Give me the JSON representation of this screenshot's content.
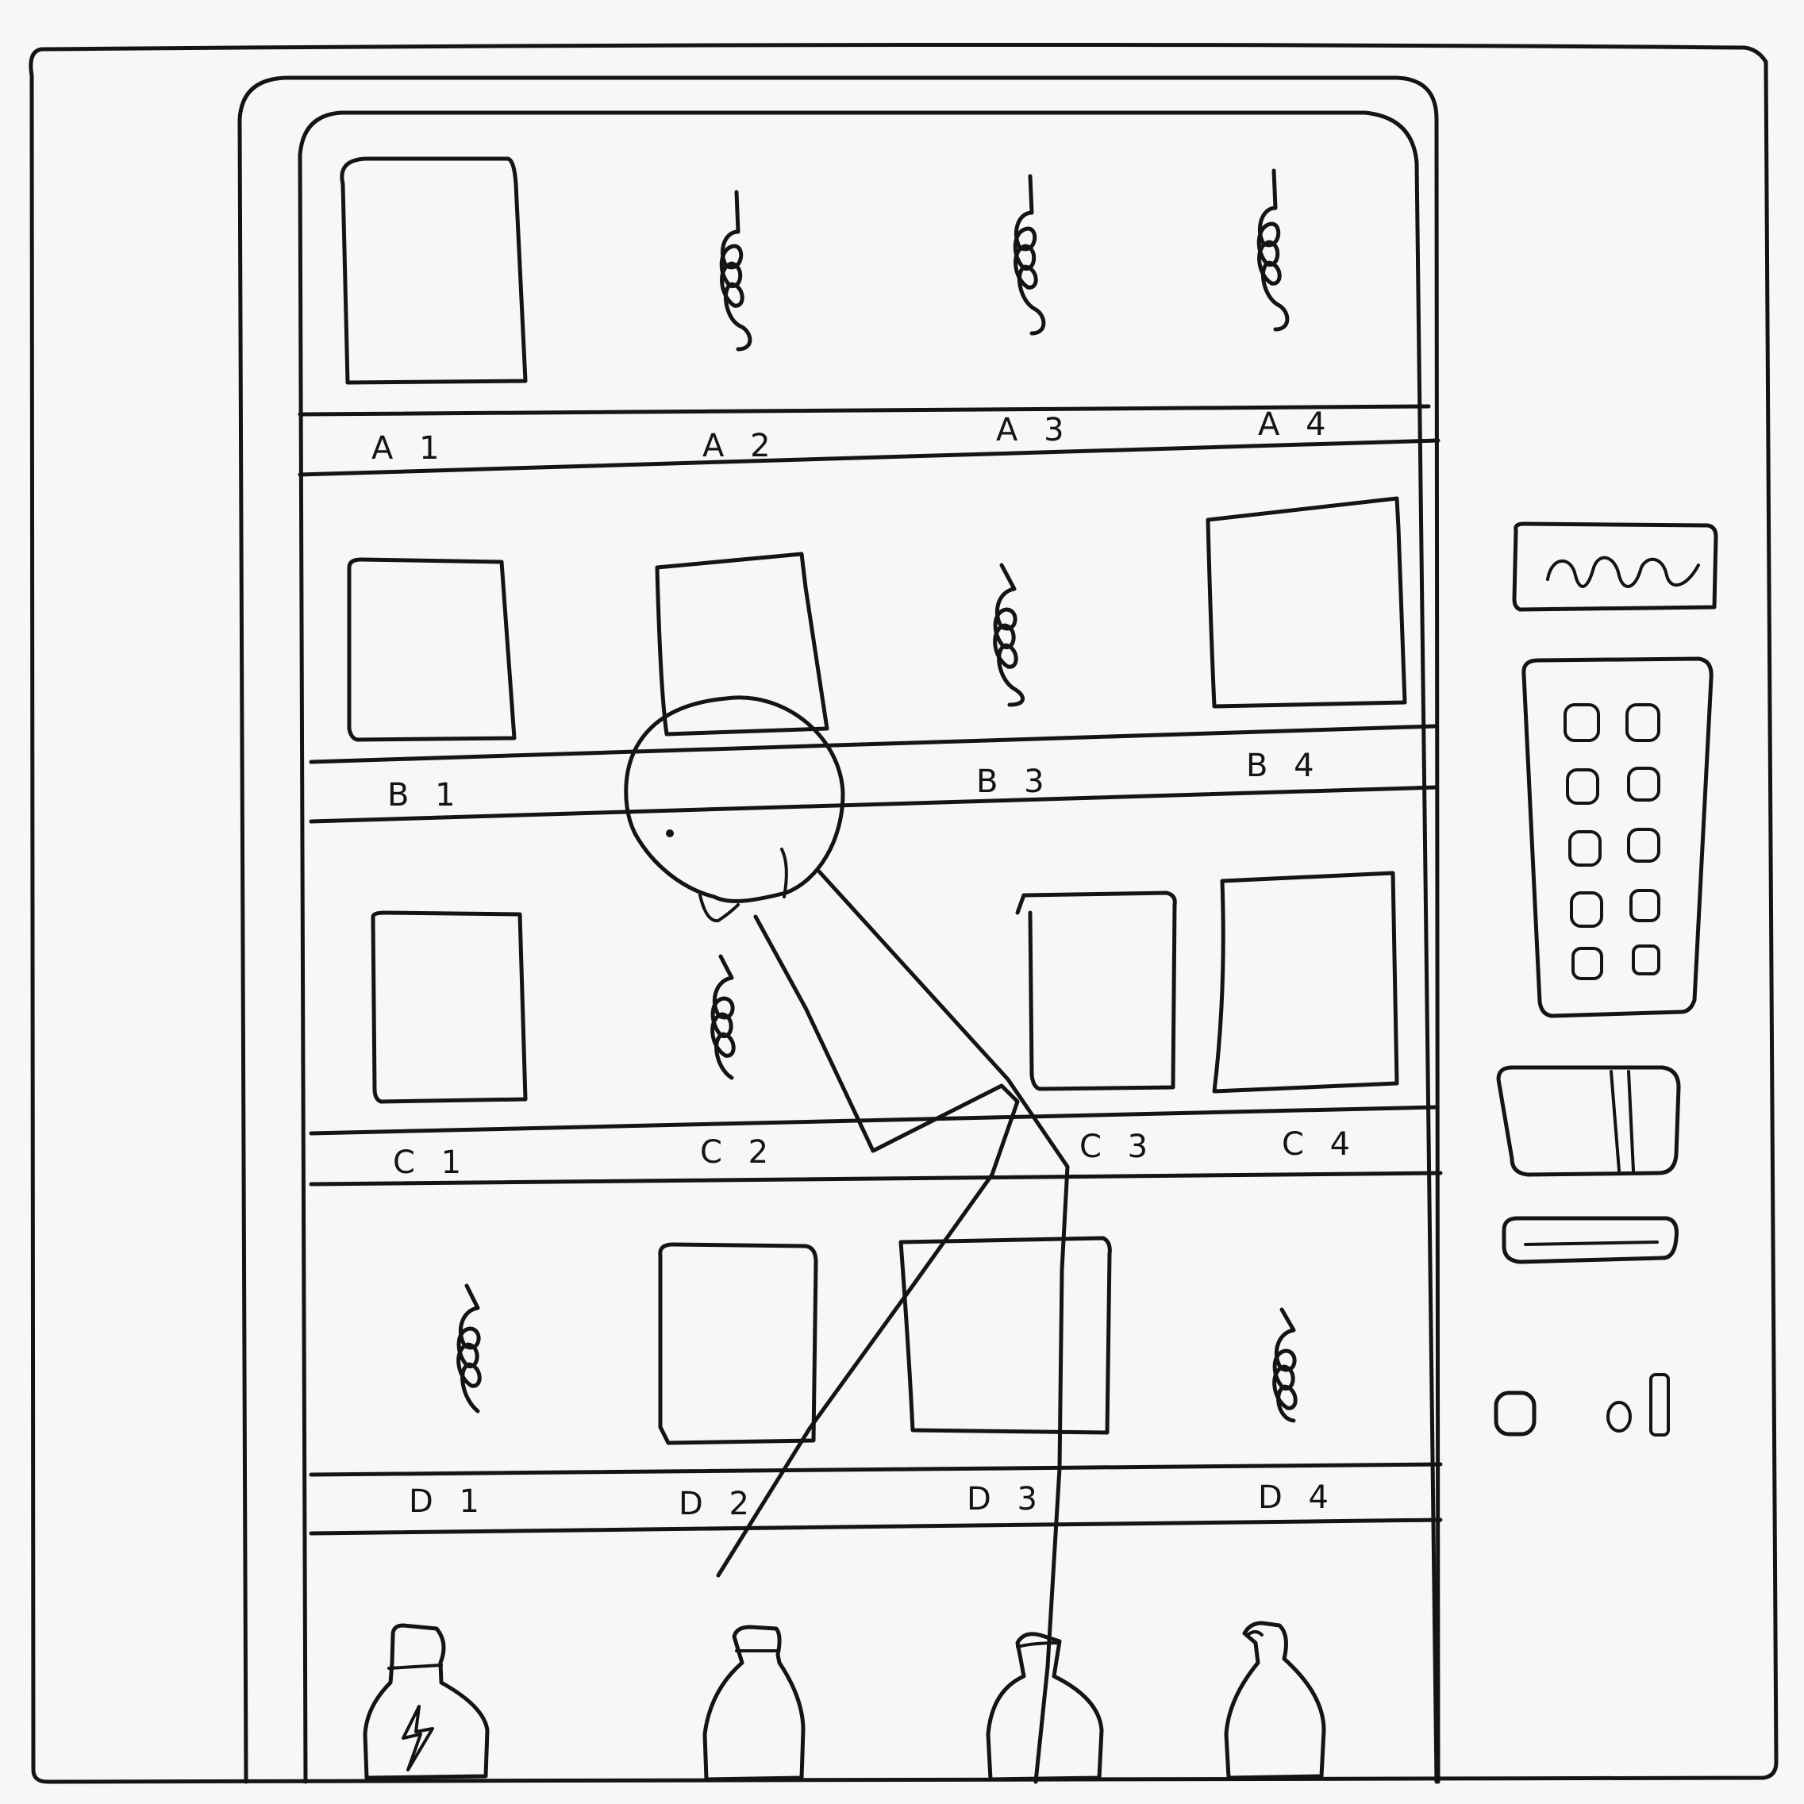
{
  "machine": {
    "rows": [
      {
        "row": "A",
        "slots": [
          {
            "label": "A 1",
            "content": "item"
          },
          {
            "label": "A 2",
            "content": "coil"
          },
          {
            "label": "A 3",
            "content": "coil"
          },
          {
            "label": "A 4",
            "content": "coil"
          }
        ]
      },
      {
        "row": "B",
        "slots": [
          {
            "label": "B 1",
            "content": "item"
          },
          {
            "label": "",
            "content": "item"
          },
          {
            "label": "B 3",
            "content": "coil"
          },
          {
            "label": "B 4",
            "content": "item"
          }
        ]
      },
      {
        "row": "C",
        "slots": [
          {
            "label": "C 1",
            "content": "item"
          },
          {
            "label": "C 2",
            "content": "coil"
          },
          {
            "label": "C 3",
            "content": "item"
          },
          {
            "label": "C 4",
            "content": "item"
          }
        ]
      },
      {
        "row": "D",
        "slots": [
          {
            "label": "D 1",
            "content": "coil"
          },
          {
            "label": "D 2",
            "content": "item"
          },
          {
            "label": "D 3",
            "content": "item"
          },
          {
            "label": "D 4",
            "content": "coil"
          }
        ]
      }
    ],
    "bottles": [
      {
        "icon": "lightning-bolt-icon"
      },
      {
        "icon": ""
      },
      {
        "icon": ""
      },
      {
        "icon": ""
      }
    ],
    "panel": {
      "display_icon": "wave-icon",
      "keypad_key_count": 10
    }
  },
  "colors": {
    "ink": "#141414",
    "paper": "#f7f7f5"
  }
}
